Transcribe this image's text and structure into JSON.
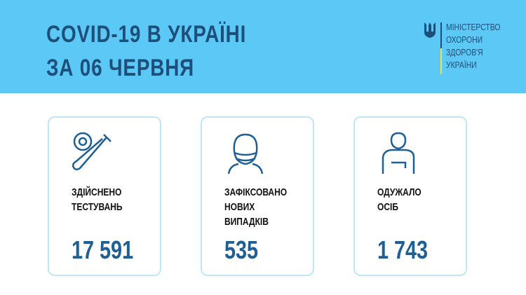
{
  "header": {
    "title_line1": "COVID-19 В УКРАЇНІ",
    "title_line2": "ЗА 06 ЧЕРВНЯ"
  },
  "logo": {
    "text": "МІНІСТЕРСТВО ОХОРОНИ ЗДОРОВ'Я УКРАЇНИ",
    "lines": [
      "МІНІСТЕРСТВО",
      "ОХОРОНИ",
      "ЗДОРОВ'Я",
      "УКРАЇНИ"
    ]
  },
  "cards": [
    {
      "icon": "test-tube-virus-icon",
      "label": "ЗДІЙСНЕНО\nТЕСТУВАНЬ",
      "value": "17 591"
    },
    {
      "icon": "masked-person-icon",
      "label": "ЗАФІКСОВАНО\nНОВИХ\nВИПАДКІВ",
      "value": "535"
    },
    {
      "icon": "recovered-person-icon",
      "label": "ОДУЖАЛО\nОСІБ",
      "value": "1 743"
    }
  ],
  "colors": {
    "banner": "#5bc8f5",
    "title": "#1e4f7a",
    "value": "#1e5f94",
    "card_border": "#bfe7f7"
  }
}
